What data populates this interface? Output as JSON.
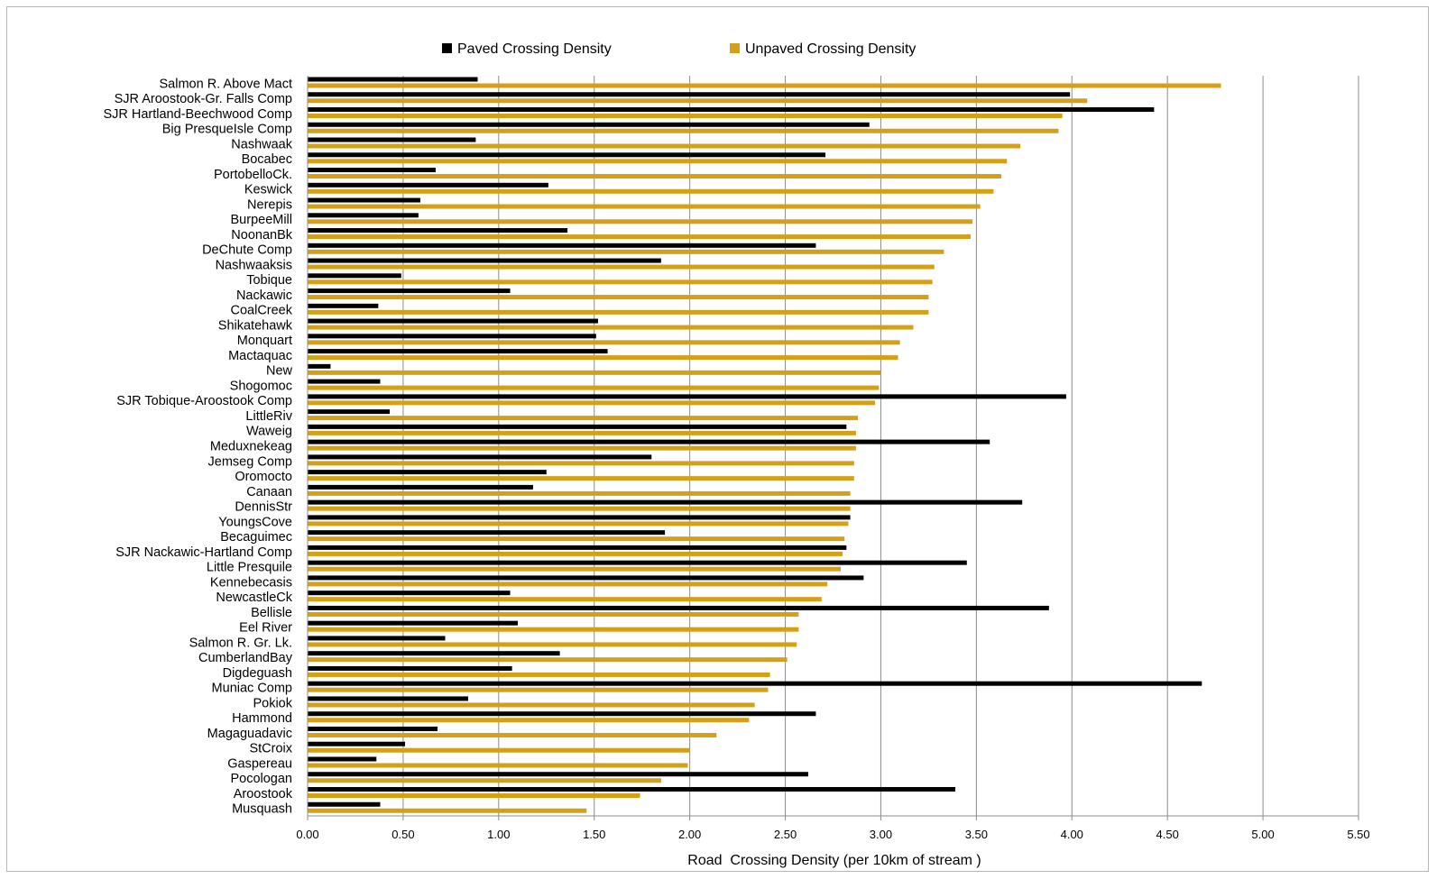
{
  "chart_data": {
    "type": "bar",
    "orientation": "horizontal",
    "xlabel": "Road  Crossing Density (per 10km of stream )",
    "xlim": [
      0,
      5.5
    ],
    "xticks": [
      "0.00",
      "0.50",
      "1.00",
      "1.50",
      "2.00",
      "2.50",
      "3.00",
      "3.50",
      "4.00",
      "4.50",
      "5.00",
      "5.50"
    ],
    "grid": "vertical",
    "legend_position": "top",
    "categories": [
      "Salmon R. Above Mact",
      "SJR Aroostook-Gr. Falls Comp",
      "SJR Hartland-Beechwood Comp",
      "Big PresqueIsle Comp",
      "Nashwaak",
      "Bocabec",
      "PortobelloCk.",
      "Keswick",
      "Nerepis",
      "BurpeeMill",
      "NoonanBk",
      "DeChute Comp",
      "Nashwaaksis",
      "Tobique",
      "Nackawic",
      "CoalCreek",
      "Shikatehawk",
      "Monquart",
      "Mactaquac",
      "New",
      "Shogomoc",
      "SJR Tobique-Aroostook Comp",
      "LittleRiv",
      "Waweig",
      "Meduxnekeag",
      "Jemseg Comp",
      "Oromocto",
      "Canaan",
      "DennisStr",
      "YoungsCove",
      "Becaguimec",
      "SJR Nackawic-Hartland Comp",
      "Little Presquile",
      "Kennebecasis",
      "NewcastleCk",
      "Bellisle",
      "Eel River",
      "Salmon R. Gr. Lk.",
      "CumberlandBay",
      "Digdeguash",
      "Muniac Comp",
      "Pokiok",
      "Hammond",
      "Magaguadavic",
      "StCroix",
      "Gaspereau",
      "Pocologan",
      "Aroostook",
      "Musquash"
    ],
    "series": [
      {
        "name": "Paved Crossing Density",
        "color": "#000000",
        "values": [
          0.89,
          3.99,
          4.43,
          2.94,
          0.88,
          2.71,
          0.67,
          1.26,
          0.59,
          0.58,
          1.36,
          2.66,
          1.85,
          0.49,
          1.06,
          0.37,
          1.52,
          1.51,
          1.57,
          0.12,
          0.38,
          3.97,
          0.43,
          2.82,
          3.57,
          1.8,
          1.25,
          1.18,
          3.74,
          2.84,
          1.87,
          2.82,
          3.45,
          2.91,
          1.06,
          3.88,
          1.1,
          0.72,
          1.32,
          1.07,
          4.68,
          0.84,
          2.66,
          0.68,
          0.51,
          0.36,
          2.62,
          3.39,
          0.38
        ]
      },
      {
        "name": "Unpaved Crossing Density",
        "color": "#D4A017",
        "values": [
          4.78,
          4.08,
          3.95,
          3.93,
          3.73,
          3.66,
          3.63,
          3.59,
          3.52,
          3.48,
          3.47,
          3.33,
          3.28,
          3.27,
          3.25,
          3.25,
          3.17,
          3.1,
          3.09,
          3.0,
          2.99,
          2.97,
          2.88,
          2.87,
          2.87,
          2.86,
          2.86,
          2.84,
          2.84,
          2.83,
          2.81,
          2.8,
          2.79,
          2.72,
          2.69,
          2.57,
          2.57,
          2.56,
          2.51,
          2.42,
          2.41,
          2.34,
          2.31,
          2.14,
          2.0,
          1.99,
          1.85,
          1.74,
          1.46
        ]
      }
    ]
  }
}
